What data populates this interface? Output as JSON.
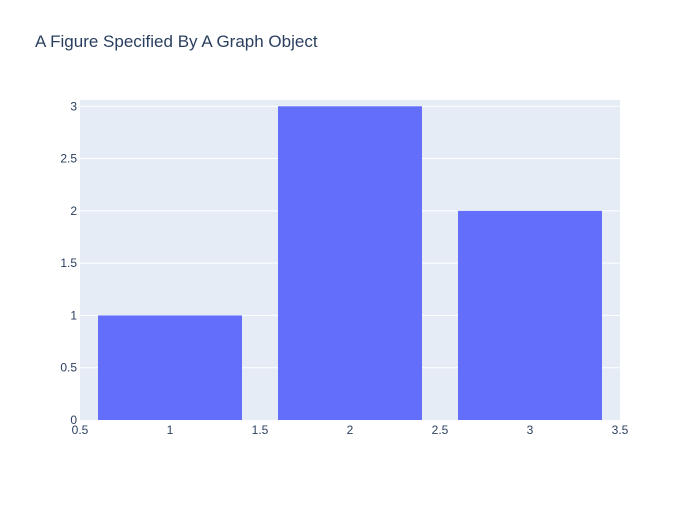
{
  "chart_data": {
    "type": "bar",
    "title": "A Figure Specified By A Graph Object",
    "x": [
      1,
      2,
      3
    ],
    "values": [
      1,
      3,
      2
    ],
    "xlim": [
      0.5,
      3.5
    ],
    "ylim": [
      0,
      3.06
    ],
    "x_ticks": [
      0.5,
      1,
      1.5,
      2,
      2.5,
      3,
      3.5
    ],
    "x_tick_labels": [
      "0.5",
      "1",
      "1.5",
      "2",
      "2.5",
      "3",
      "3.5"
    ],
    "y_ticks": [
      0,
      0.5,
      1,
      1.5,
      2,
      2.5,
      3
    ],
    "y_tick_labels": [
      "0",
      "0.5",
      "1",
      "1.5",
      "2",
      "2.5",
      "3"
    ],
    "bar_width": 0.8,
    "grid": true,
    "colors": {
      "bar": "#636efa",
      "plot_bg": "#e5ecf6",
      "grid": "#ffffff",
      "text": "#2a3f5f"
    }
  }
}
